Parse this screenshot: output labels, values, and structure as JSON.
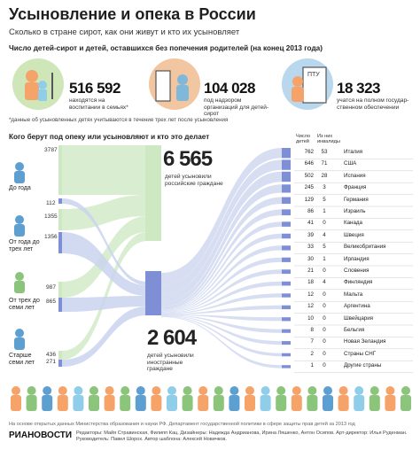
{
  "header": {
    "title": "Усыновление и опека в России",
    "subtitle": "Сколько в стране сирот, как они живут и кто их усыновляет"
  },
  "stats_section": {
    "heading": "Число детей-сирот и детей, оставшихся без попечения родителей (на конец 2013 года)",
    "items": [
      {
        "value": "516 592",
        "text": "находятся на воспитании в семьях*",
        "color": "#cfe6b8",
        "icon": "family-icon"
      },
      {
        "value": "104 028",
        "text": "под надзором организаций для детей-сирот",
        "color": "#f2c6a0",
        "icon": "orphanage-icon"
      },
      {
        "value": "18 323",
        "text": "учатся на полном государ-ственном обеспечении",
        "color": "#b9d8ee",
        "icon": "school-icon"
      }
    ],
    "footnote": "*данные об усыновленных детях учитываются в течение трех лет после усыновления",
    "ptu_label": "ПТУ"
  },
  "flow_section": {
    "heading": "Кого берут под опеку или усыновляют и кто это делает",
    "age_groups": [
      {
        "label": "До года",
        "top": "3787",
        "bottom": "112"
      },
      {
        "label": "От года до трех лет",
        "top": "1355",
        "bottom": "1356"
      },
      {
        "label": "От трех до семи лет",
        "top": "987",
        "bottom": "865"
      },
      {
        "label": "Старше семи лет",
        "top": "436",
        "bottom": "271"
      }
    ],
    "domestic": {
      "value": "6 565",
      "text": "детей усыновили российские граждане"
    },
    "foreign": {
      "value": "2 604",
      "text": "детей усыновили иностранные граждане"
    },
    "col_children": "Число детей",
    "col_disabled": "Из них инвалиды"
  },
  "chart_data": {
    "type": "table",
    "title": "Кого берут под опеку или усыновляют и кто это делает",
    "columns": [
      "Страна",
      "Число детей",
      "Из них инвалиды"
    ],
    "rows": [
      {
        "country": "Италия",
        "children": 762,
        "disabled": 53
      },
      {
        "country": "США",
        "children": 646,
        "disabled": 71
      },
      {
        "country": "Испания",
        "children": 502,
        "disabled": 28
      },
      {
        "country": "Франция",
        "children": 245,
        "disabled": 3
      },
      {
        "country": "Германия",
        "children": 129,
        "disabled": 5
      },
      {
        "country": "Израиль",
        "children": 86,
        "disabled": 1
      },
      {
        "country": "Канада",
        "children": 41,
        "disabled": 0
      },
      {
        "country": "Швеция",
        "children": 39,
        "disabled": 4
      },
      {
        "country": "Великобритания",
        "children": 33,
        "disabled": 5
      },
      {
        "country": "Ирландия",
        "children": 30,
        "disabled": 1
      },
      {
        "country": "Словения",
        "children": 21,
        "disabled": 0
      },
      {
        "country": "Финляндия",
        "children": 18,
        "disabled": 4
      },
      {
        "country": "Мальта",
        "children": 12,
        "disabled": 0
      },
      {
        "country": "Аргентина",
        "children": 12,
        "disabled": 0
      },
      {
        "country": "Швейцария",
        "children": 10,
        "disabled": 0
      },
      {
        "country": "Бельгия",
        "children": 8,
        "disabled": 0
      },
      {
        "country": "Новая Зеландия",
        "children": 7,
        "disabled": 0
      },
      {
        "country": "Страны СНГ",
        "children": 2,
        "disabled": 0
      },
      {
        "country": "Другие страны",
        "children": 1,
        "disabled": 0
      }
    ],
    "colors": {
      "domestic": "#cfe8c4",
      "foreign": "#c9d3ee",
      "foreign_bar": "#7f8fd6",
      "domestic_bar": "#cfe8c4"
    }
  },
  "footer": {
    "source": "На основе открытых данных Министерства образования и науки РФ. Департамент государственной политики в сфере защиты прав детей за 2013 год",
    "logo": "РИАНОВОСТИ",
    "credits": "Редакторы: Майя Стравинская, Филипп Кац. Дизайнеры: Надежда Андрианова, Ирина Ляшенко, Антон Осипов. Арт-директор: Илья Руденман. Руководитель: Павел Шорох. Автор шаблона: Алексей Новичков."
  }
}
